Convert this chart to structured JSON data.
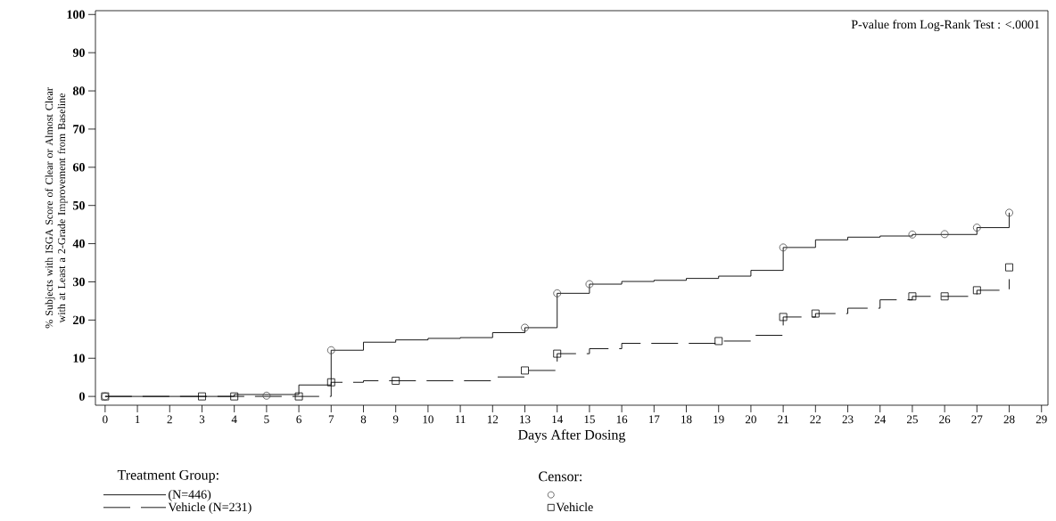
{
  "chart_data": {
    "type": "step",
    "xlabel": "Days After Dosing",
    "ylabel": "% Subjects with ISGA Score of Clear or Almost Clear with at Least a 2-Grade Improvement from Baseline",
    "legend_title": "Treatment Group:",
    "annotations": [
      "P-value from Log-Rank Test : <.0001",
      "Censor:"
    ],
    "xlim": [
      -0.3,
      29.2
    ],
    "ylim": [
      -2.3,
      101
    ],
    "xticks": [
      0,
      1,
      2,
      3,
      4,
      5,
      6,
      7,
      8,
      9,
      10,
      11,
      12,
      13,
      14,
      15,
      16,
      17,
      18,
      19,
      20,
      21,
      22,
      23,
      24,
      25,
      26,
      27,
      28,
      29
    ],
    "yticks": [
      0,
      10,
      20,
      30,
      40,
      50,
      60,
      70,
      80,
      90,
      100
    ],
    "legend": "bottom",
    "grid": false,
    "series": [
      {
        "name": "(N=446)",
        "type": "step",
        "color": "#000000",
        "line_style": "solid",
        "x": [
          0,
          4,
          6,
          7,
          8,
          9,
          10,
          11,
          12,
          13,
          14,
          15,
          16,
          17,
          18,
          19,
          20,
          21,
          22,
          23,
          24,
          25,
          27,
          28
        ],
        "values": [
          0,
          0.5,
          3,
          12.1,
          14.2,
          14.8,
          15.2,
          15.4,
          16.7,
          18.0,
          27.0,
          29.4,
          30.1,
          30.4,
          30.9,
          31.5,
          33.0,
          39.0,
          41.0,
          41.7,
          42.0,
          42.4,
          44.2,
          48.1
        ]
      },
      {
        "name": "Vehicle (N=231)",
        "type": "step",
        "color": "#000000",
        "line_style": "dashed",
        "x": [
          0,
          7,
          8,
          12,
          13,
          14,
          15,
          16,
          19,
          20,
          21,
          22,
          23,
          24,
          25,
          27,
          28
        ],
        "values": [
          0,
          3.7,
          4.1,
          5.1,
          6.8,
          11.2,
          12.5,
          13.9,
          14.5,
          16.0,
          20.8,
          21.7,
          23.1,
          25.3,
          26.2,
          27.8,
          30.7
        ]
      },
      {
        "type": "scatter",
        "color": "#4a4a4a",
        "marker": "circle",
        "x": [
          0,
          5,
          7,
          13,
          14,
          15,
          21,
          25,
          26,
          27,
          28
        ],
        "values": [
          0,
          0.2,
          12.1,
          18.0,
          27.0,
          29.4,
          39.0,
          42.4,
          42.5,
          44.2,
          48.1
        ]
      },
      {
        "name": "Vehicle",
        "type": "scatter",
        "color": "#000000",
        "marker": "square",
        "x": [
          0,
          3,
          4,
          6,
          7,
          9,
          13,
          14,
          19,
          21,
          22,
          25,
          26,
          27,
          28
        ],
        "values": [
          0,
          0,
          0,
          0,
          3.7,
          4.1,
          6.8,
          11.2,
          14.5,
          20.8,
          21.7,
          26.2,
          26.2,
          27.8,
          33.8
        ]
      }
    ]
  }
}
